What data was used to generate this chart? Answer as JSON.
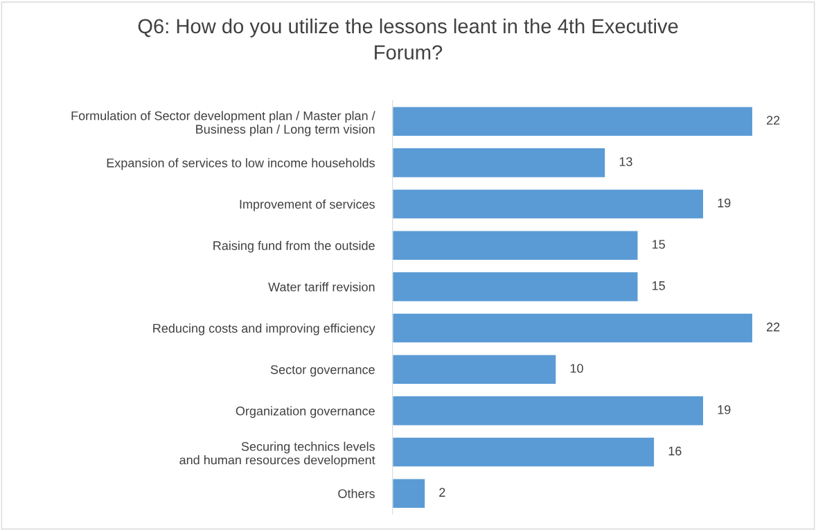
{
  "chart_data": {
    "type": "bar",
    "orientation": "horizontal",
    "title": "Q6: How do you utilize the lessons leant in the 4th Executive\nForum?",
    "categories": [
      "Formulation of Sector development plan / Master plan /\nBusiness plan / Long term vision",
      "Expansion of services to low income households",
      "Improvement of services",
      "Raising fund from the outside",
      "Water tariff revision",
      "Reducing costs and improving efficiency",
      "Sector governance",
      "Organization governance",
      "Securing technics levels\nand human resources development",
      "Others"
    ],
    "values": [
      22,
      13,
      19,
      15,
      15,
      22,
      10,
      19,
      16,
      2
    ],
    "color": "#5b9bd5",
    "data_labels": true
  }
}
